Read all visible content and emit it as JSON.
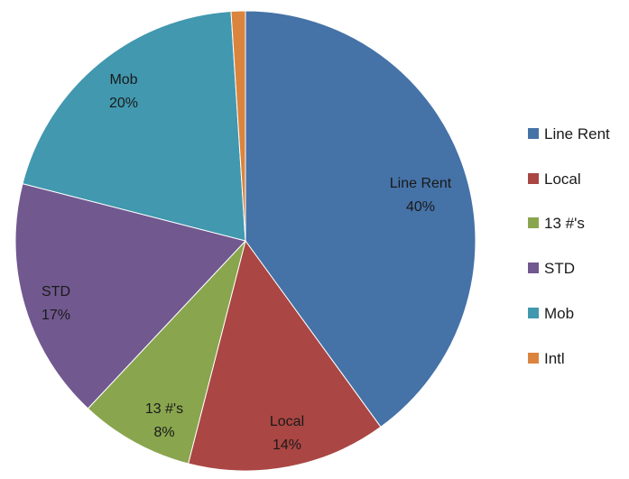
{
  "chart_data": {
    "type": "pie",
    "categories": [
      "Line Rent",
      "Local",
      "13 #'s",
      "STD",
      "Mob",
      "Intl"
    ],
    "values": [
      40,
      14,
      8,
      17,
      20,
      1
    ],
    "value_labels": [
      "40%",
      "14%",
      "8%",
      "17%",
      "20%",
      ""
    ],
    "colors": [
      "#4572A7",
      "#AA4643",
      "#89A54E",
      "#71588F",
      "#4198AF",
      "#DB843D"
    ],
    "start": "12 o'clock",
    "direction": "clockwise",
    "legend": {
      "position": "right"
    }
  }
}
